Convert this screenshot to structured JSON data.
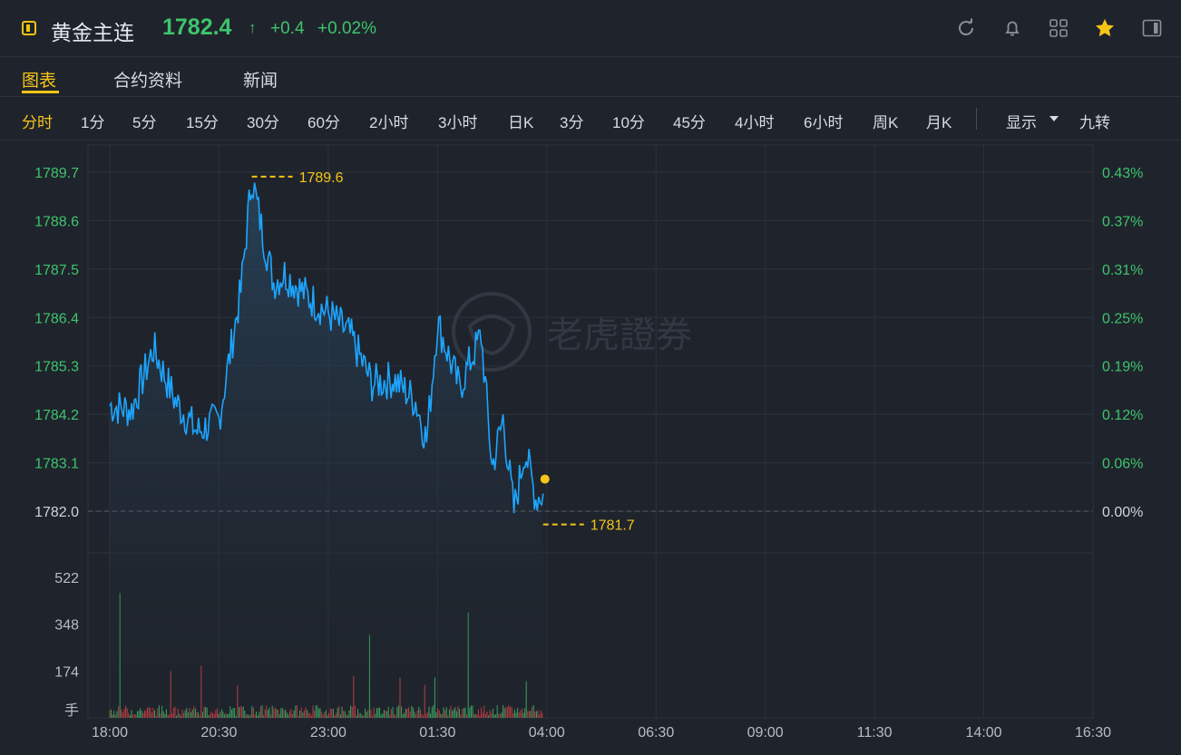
{
  "header": {
    "title": "黄金主连",
    "price": "1782.4",
    "arrow": "↑",
    "change": "+0.4",
    "change_pct": "+0.02%",
    "icons": [
      "refresh-icon",
      "bell-icon",
      "grid-icon",
      "star-icon",
      "panel-icon"
    ]
  },
  "tabs": [
    {
      "label": "图表",
      "active": true
    },
    {
      "label": "合约资料",
      "active": false
    },
    {
      "label": "新闻",
      "active": false
    }
  ],
  "periods": [
    "分时",
    "1分",
    "5分",
    "15分",
    "30分",
    "60分",
    "2小时",
    "3小时",
    "日K",
    "3分",
    "10分",
    "45分",
    "4小时",
    "6小时",
    "周K",
    "月K"
  ],
  "active_period": "分时",
  "display_label": "显示",
  "nine_turn_label": "九转",
  "watermark": "老虎證券",
  "chart_data": {
    "type": "line",
    "price_axis": {
      "labels": [
        "1789.7",
        "1788.6",
        "1787.5",
        "1786.4",
        "1785.3",
        "1784.2",
        "1783.1",
        "1782.0"
      ],
      "values": [
        1789.7,
        1788.6,
        1787.5,
        1786.4,
        1785.3,
        1784.2,
        1783.1,
        1782.0
      ]
    },
    "pct_axis": {
      "labels": [
        "0.43%",
        "0.37%",
        "0.31%",
        "0.25%",
        "0.19%",
        "0.12%",
        "0.06%",
        "0.00%"
      ]
    },
    "x_labels": [
      "18:00",
      "20:30",
      "23:00",
      "01:30",
      "04:00",
      "06:30",
      "09:00",
      "11:30",
      "14:00",
      "16:30"
    ],
    "ref_price": 1782.0,
    "high_label": "1789.6",
    "low_label": "1781.7",
    "high": 1789.6,
    "low": 1781.7,
    "last_price": 1782.4,
    "line_color": "#1da5ff",
    "marker_color": "#f5c518",
    "series": {
      "x": [
        "18:00",
        "18:30",
        "19:00",
        "19:30",
        "20:00",
        "20:30",
        "21:00",
        "21:15",
        "21:30",
        "21:45",
        "22:00",
        "22:30",
        "23:00",
        "23:30",
        "00:00",
        "00:30",
        "01:00",
        "01:15",
        "01:30",
        "02:00",
        "02:30",
        "02:45",
        "03:00",
        "03:15",
        "03:30",
        "03:45",
        "03:55"
      ],
      "y": [
        1784.4,
        1784.3,
        1785.7,
        1784.5,
        1783.8,
        1784.1,
        1787.0,
        1789.6,
        1788.3,
        1787.2,
        1787.4,
        1786.9,
        1786.5,
        1786.0,
        1784.9,
        1785.0,
        1784.5,
        1783.6,
        1786.3,
        1784.8,
        1786.0,
        1783.0,
        1784.1,
        1782.0,
        1783.4,
        1782.3,
        1782.4
      ]
    },
    "volume_axis": {
      "labels": [
        "522",
        "348",
        "174",
        "手"
      ],
      "values": [
        522,
        348,
        174
      ]
    },
    "volume_colors": {
      "up": "#3ec46d",
      "down": "#e0454a"
    },
    "volume_peaks": {
      "max": 522
    }
  }
}
